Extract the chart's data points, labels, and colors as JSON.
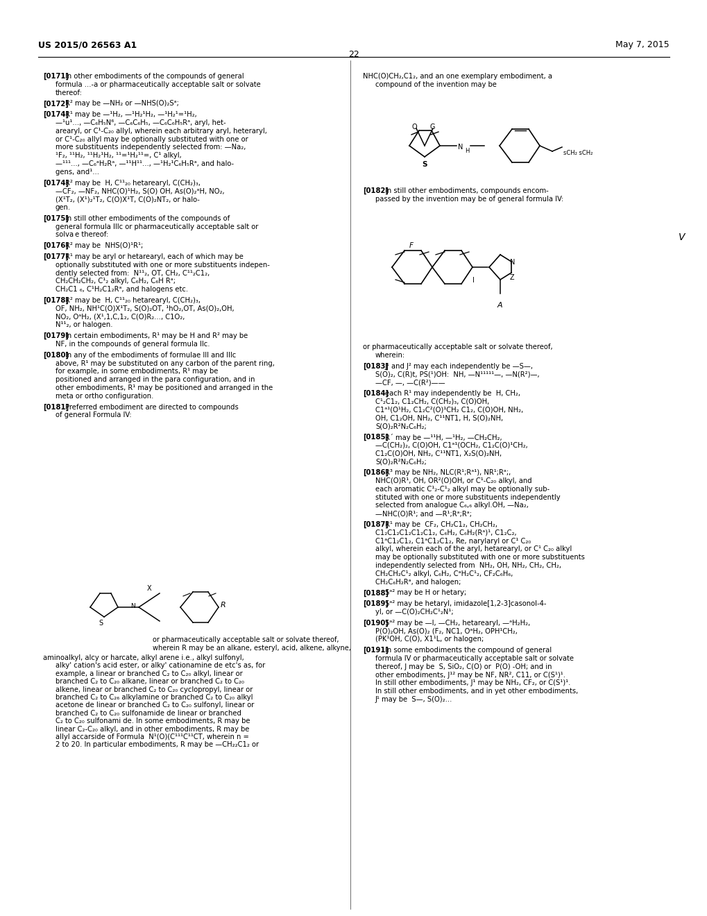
{
  "title_left": "US 2015/0 26563 A1",
  "title_right": "May 7, 2015",
  "page_number": "22",
  "background_color": "#ffffff",
  "text_color": "#000000",
  "figsize": [
    10.2,
    13.2
  ],
  "dpi": 100
}
